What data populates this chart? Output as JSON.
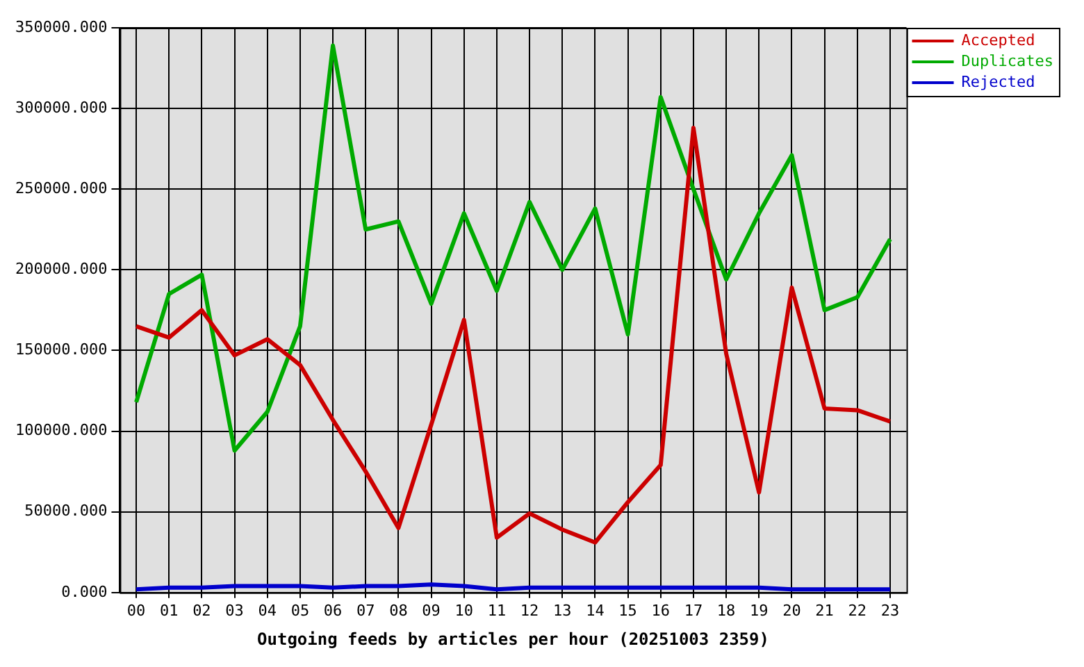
{
  "chart_data": {
    "type": "line",
    "xlabel": "Outgoing feeds by articles per hour (20251003 2359)",
    "categories": [
      "00",
      "01",
      "02",
      "03",
      "04",
      "05",
      "06",
      "07",
      "08",
      "09",
      "10",
      "11",
      "12",
      "13",
      "14",
      "15",
      "16",
      "17",
      "18",
      "19",
      "20",
      "21",
      "22",
      "23"
    ],
    "series": [
      {
        "name": "Accepted",
        "color": "#cc0000",
        "values": [
          165000,
          158000,
          175000,
          147000,
          157000,
          141000,
          107000,
          75000,
          40000,
          104000,
          169000,
          34000,
          49000,
          39000,
          31000,
          56000,
          79000,
          288000,
          148000,
          62000,
          189000,
          114000,
          113000,
          106000
        ]
      },
      {
        "name": "Duplicates",
        "color": "#00aa00",
        "values": [
          118000,
          185000,
          197000,
          88000,
          112000,
          165000,
          339000,
          225000,
          230000,
          179000,
          235000,
          187000,
          242000,
          200000,
          238000,
          160000,
          307000,
          250000,
          194000,
          235000,
          271000,
          175000,
          183000,
          219000
        ]
      },
      {
        "name": "Rejected",
        "color": "#0000cc",
        "values": [
          2000,
          3000,
          3000,
          4000,
          4000,
          4000,
          3000,
          4000,
          4000,
          5000,
          4000,
          2000,
          3000,
          3000,
          3000,
          3000,
          3000,
          3000,
          3000,
          3000,
          2000,
          2000,
          2000,
          2000
        ]
      }
    ],
    "ylim": [
      0,
      350000
    ],
    "yticks": [
      {
        "value": 0,
        "label": "0.000"
      },
      {
        "value": 50000,
        "label": "50000.000"
      },
      {
        "value": 100000,
        "label": "100000.000"
      },
      {
        "value": 150000,
        "label": "150000.000"
      },
      {
        "value": 200000,
        "label": "200000.000"
      },
      {
        "value": 250000,
        "label": "250000.000"
      },
      {
        "value": 300000,
        "label": "300000.000"
      },
      {
        "value": 350000,
        "label": "350000.000"
      }
    ],
    "grid": true,
    "legend": "top right",
    "marker": "none",
    "line_style": "solid"
  }
}
